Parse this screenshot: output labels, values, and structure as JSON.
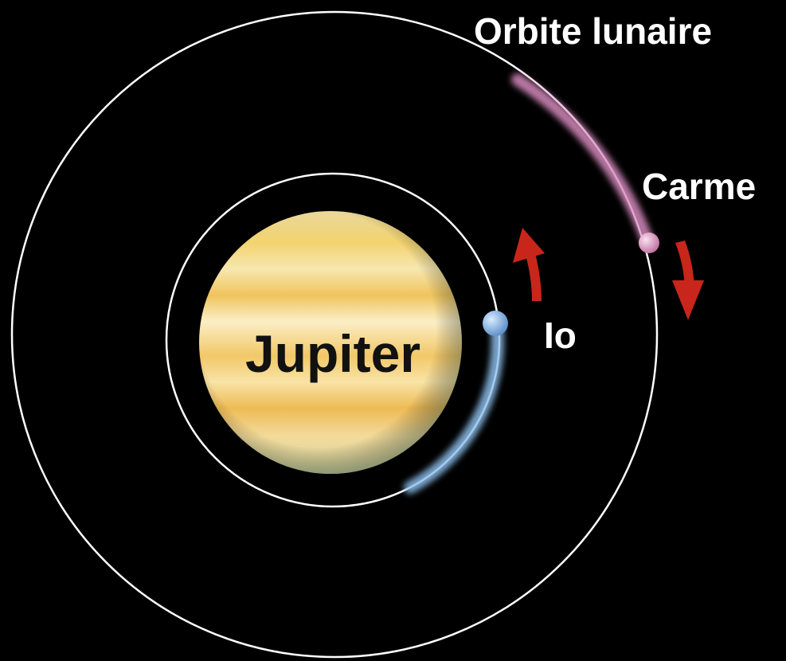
{
  "labels": {
    "orbit": "Orbite lunaire",
    "carme": "Carme",
    "io": "Io",
    "jupiter": "Jupiter"
  }
}
